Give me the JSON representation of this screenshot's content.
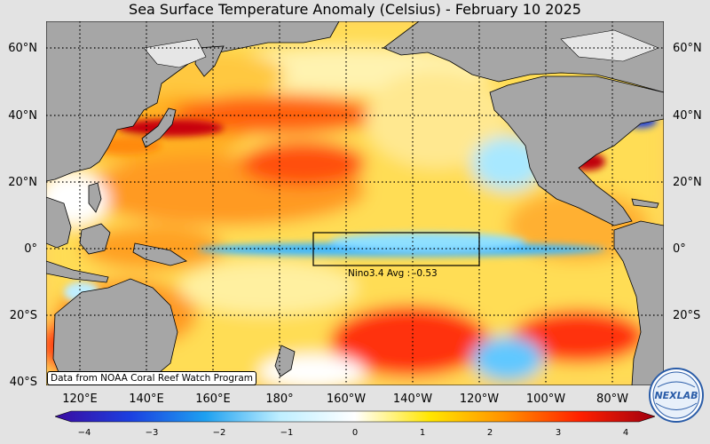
{
  "title": "Sea Surface Temperature Anomaly (Celsius) - February 10 2025",
  "lat_labels": [
    "60°N",
    "40°N",
    "20°N",
    "0°",
    "20°S",
    "40°S"
  ],
  "lon_labels": [
    "120°E",
    "140°E",
    "160°E",
    "180°",
    "160°W",
    "140°W",
    "120°W",
    "100°W",
    "80°W"
  ],
  "box_annotation": "Nino3.4 Avg : -0.53",
  "credit": "Data from NOAA Coral Reef Watch Program",
  "colorbar": {
    "ticks": [
      "−4",
      "−3",
      "−2",
      "−1",
      "0",
      "1",
      "2",
      "3",
      "4"
    ],
    "min": -4,
    "max": 4,
    "colors": [
      "#3a0ba0",
      "#1c3fe0",
      "#1ea0f0",
      "#bfefff",
      "#ffffff",
      "#ffe600",
      "#ff9000",
      "#ff2000",
      "#a00010"
    ]
  },
  "colors": {
    "land": "#a6a6a6",
    "ice": "#e6e6e6",
    "background": "#e3e3e3"
  },
  "logo_text": "NEXLAB"
}
